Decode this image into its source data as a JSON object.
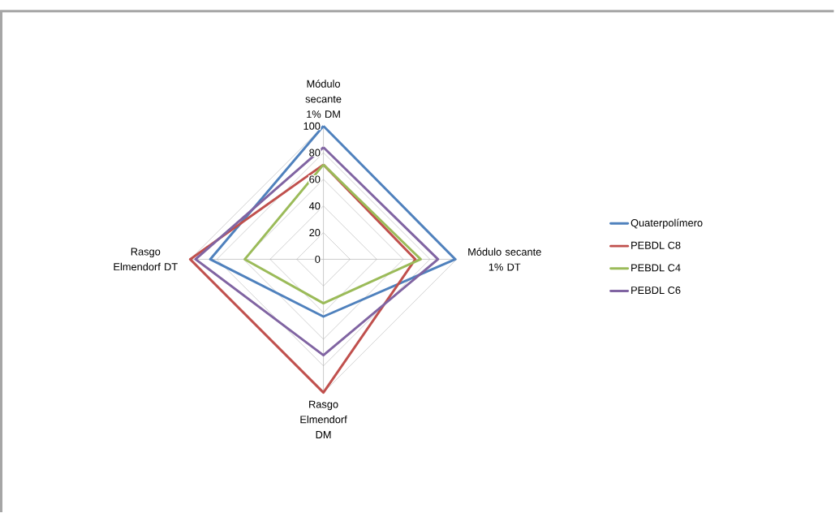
{
  "chart_data": {
    "type": "radar",
    "categories": [
      "Módulo secante 1% DM",
      "Módulo secante 1% DT",
      "Rasgo Elmendorf DM",
      "Rasgo Elmendorf DT"
    ],
    "series": [
      {
        "name": "Quaterpolímero",
        "color": "#4f81bd",
        "values": [
          100,
          99,
          43,
          85
        ]
      },
      {
        "name": "PEBDL C8",
        "color": "#c0504d",
        "values": [
          71,
          69,
          100,
          100
        ]
      },
      {
        "name": "PEBDL C4",
        "color": "#9bbb59",
        "values": [
          71,
          73,
          33,
          59
        ]
      },
      {
        "name": "PEBDL C6",
        "color": "#8064a2",
        "values": [
          84,
          86,
          72,
          96
        ]
      }
    ],
    "ylim": [
      0,
      100
    ],
    "yticks": [
      0,
      20,
      40,
      60,
      80,
      100
    ],
    "grid": true,
    "legend": "right"
  }
}
